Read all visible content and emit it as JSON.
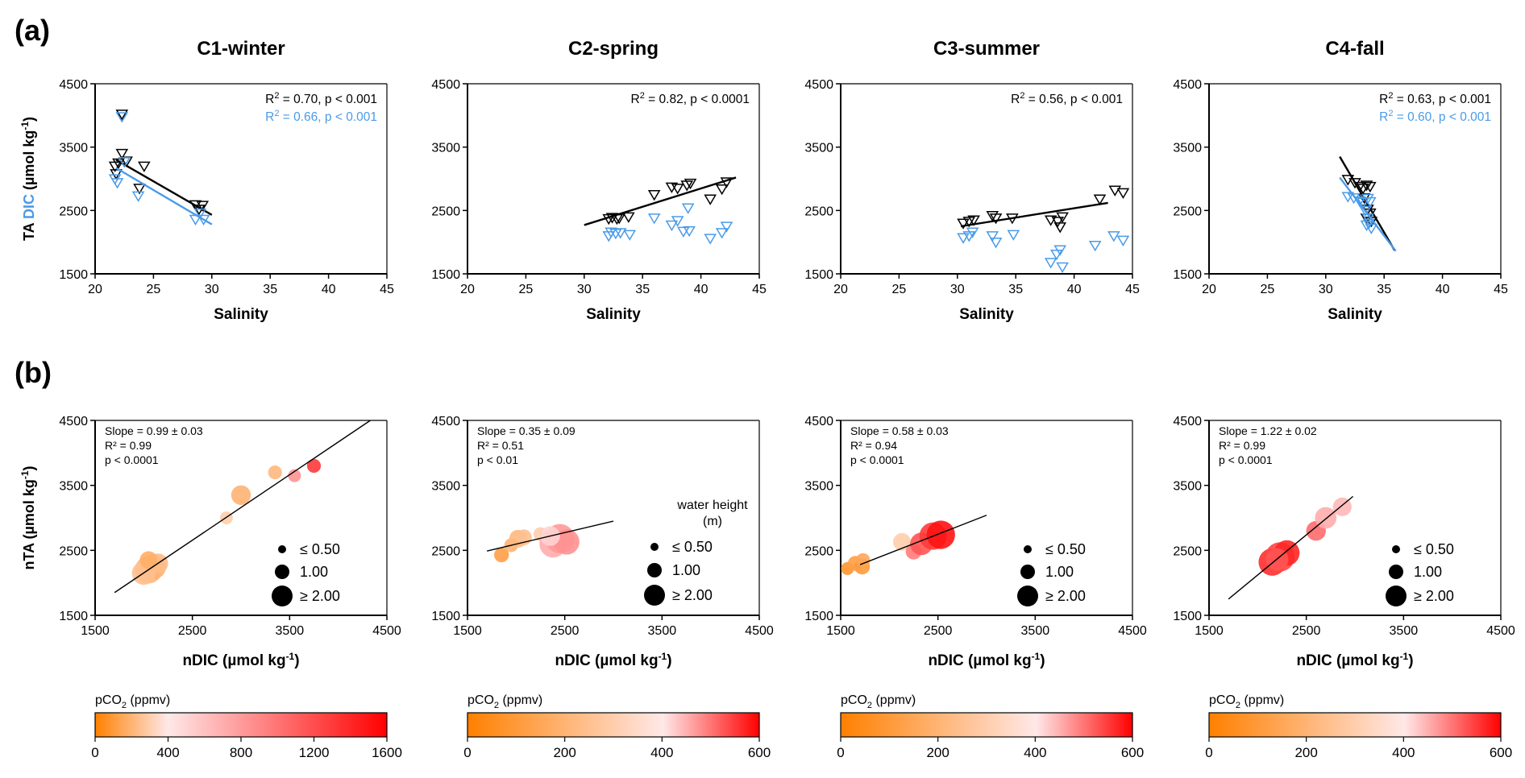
{
  "figure": {
    "panel_a_label": "(a)",
    "panel_b_label": "(b)"
  },
  "colors": {
    "ta": "#000000",
    "dic": "#4a9be8",
    "bubble_low": "#ff8000",
    "bubble_mid": "#ffe6e6",
    "bubble_high": "#ff0000"
  },
  "chart_data": [
    {
      "type": "scatter",
      "panel": "a",
      "title": "C1-winter",
      "xlabel": "Salinity",
      "ylabel_parts": [
        "TA",
        "DIC",
        "(µmol kg",
        "-1",
        ")"
      ],
      "xlim": [
        20,
        45
      ],
      "ylim": [
        1500,
        4500
      ],
      "xticks": [
        20,
        25,
        30,
        35,
        40,
        45
      ],
      "yticks": [
        1500,
        2500,
        3500,
        4500
      ],
      "series": [
        {
          "name": "TA",
          "color": "#000000",
          "points": [
            [
              22.0,
              3250
            ],
            [
              21.7,
              3200
            ],
            [
              21.8,
              3080
            ],
            [
              22.3,
              4020
            ],
            [
              22.3,
              3400
            ],
            [
              22.7,
              3280
            ],
            [
              24.2,
              3200
            ],
            [
              23.8,
              2850
            ],
            [
              28.6,
              2590
            ],
            [
              28.9,
              2520
            ],
            [
              29.2,
              2580
            ]
          ],
          "fit": [
            [
              21.8,
              3300
            ],
            [
              30.0,
              2430
            ]
          ]
        },
        {
          "name": "DIC",
          "color": "#4a9be8",
          "points": [
            [
              22.3,
              3980
            ],
            [
              21.7,
              3000
            ],
            [
              21.9,
              2940
            ],
            [
              22.5,
              3270
            ],
            [
              23.7,
              2730
            ],
            [
              28.6,
              2360
            ],
            [
              29.0,
              2460
            ],
            [
              29.3,
              2360
            ]
          ],
          "fit": [
            [
              21.8,
              3170
            ],
            [
              30.0,
              2280
            ]
          ]
        }
      ],
      "annotations": [
        {
          "text": "R",
          "sup": "2",
          "rest": " = 0.70, p < 0.001",
          "color": "#000000"
        },
        {
          "text": "R",
          "sup": "2",
          "rest": " = 0.66, p < 0.001",
          "color": "#4a9be8"
        }
      ]
    },
    {
      "type": "scatter",
      "panel": "a",
      "title": "C2-spring",
      "xlabel": "Salinity",
      "xlim": [
        20,
        45
      ],
      "ylim": [
        1500,
        4500
      ],
      "xticks": [
        20,
        25,
        30,
        35,
        40,
        45
      ],
      "yticks": [
        1500,
        2500,
        3500,
        4500
      ],
      "series": [
        {
          "name": "TA",
          "color": "#000000",
          "points": [
            [
              32.1,
              2370
            ],
            [
              32.4,
              2390
            ],
            [
              32.8,
              2370
            ],
            [
              33.0,
              2380
            ],
            [
              33.8,
              2400
            ],
            [
              36.0,
              2750
            ],
            [
              37.5,
              2870
            ],
            [
              38.0,
              2850
            ],
            [
              38.8,
              2900
            ],
            [
              39.1,
              2930
            ],
            [
              40.8,
              2680
            ],
            [
              41.8,
              2840
            ],
            [
              42.2,
              2950
            ]
          ],
          "fit": [
            [
              30.0,
              2270
            ],
            [
              43.0,
              3020
            ]
          ]
        },
        {
          "name": "DIC",
          "color": "#4a9be8",
          "points": [
            [
              32.1,
              2100
            ],
            [
              32.3,
              2160
            ],
            [
              32.7,
              2140
            ],
            [
              33.1,
              2150
            ],
            [
              33.9,
              2120
            ],
            [
              36.0,
              2380
            ],
            [
              37.5,
              2270
            ],
            [
              38.0,
              2340
            ],
            [
              38.5,
              2170
            ],
            [
              39.0,
              2180
            ],
            [
              38.9,
              2540
            ],
            [
              40.8,
              2060
            ],
            [
              41.8,
              2150
            ],
            [
              42.2,
              2250
            ]
          ]
        }
      ],
      "annotations": [
        {
          "text": "R",
          "sup": "2",
          "rest": " = 0.82, p < 0.0001",
          "color": "#000000"
        }
      ]
    },
    {
      "type": "scatter",
      "panel": "a",
      "title": "C3-summer",
      "xlabel": "Salinity",
      "xlim": [
        20,
        45
      ],
      "ylim": [
        1500,
        4500
      ],
      "xticks": [
        20,
        25,
        30,
        35,
        40,
        45
      ],
      "yticks": [
        1500,
        2500,
        3500,
        4500
      ],
      "series": [
        {
          "name": "TA",
          "color": "#000000",
          "points": [
            [
              30.5,
              2300
            ],
            [
              31.0,
              2330
            ],
            [
              31.4,
              2350
            ],
            [
              33.0,
              2420
            ],
            [
              33.3,
              2380
            ],
            [
              34.7,
              2380
            ],
            [
              38.0,
              2350
            ],
            [
              38.6,
              2330
            ],
            [
              39.0,
              2400
            ],
            [
              38.8,
              2240
            ],
            [
              42.2,
              2680
            ],
            [
              43.5,
              2820
            ],
            [
              44.2,
              2780
            ]
          ],
          "fit": [
            [
              30.3,
              2250
            ],
            [
              42.9,
              2620
            ]
          ]
        },
        {
          "name": "DIC",
          "color": "#4a9be8",
          "points": [
            [
              30.5,
              2070
            ],
            [
              31.0,
              2100
            ],
            [
              31.3,
              2160
            ],
            [
              33.0,
              2100
            ],
            [
              33.3,
              2000
            ],
            [
              34.8,
              2120
            ],
            [
              38.0,
              1680
            ],
            [
              38.5,
              1810
            ],
            [
              38.8,
              1880
            ],
            [
              39.0,
              1610
            ],
            [
              41.8,
              1950
            ],
            [
              43.4,
              2100
            ],
            [
              44.2,
              2030
            ]
          ]
        }
      ],
      "annotations": [
        {
          "text": "R",
          "sup": "2",
          "rest": " = 0.56, p < 0.001",
          "color": "#000000"
        }
      ]
    },
    {
      "type": "scatter",
      "panel": "a",
      "title": "C4-fall",
      "xlabel": "Salinity",
      "xlim": [
        20,
        45
      ],
      "ylim": [
        1500,
        4500
      ],
      "xticks": [
        20,
        25,
        30,
        35,
        40,
        45
      ],
      "yticks": [
        1500,
        2500,
        3500,
        4500
      ],
      "series": [
        {
          "name": "TA",
          "color": "#000000",
          "points": [
            [
              31.9,
              2990
            ],
            [
              32.5,
              2940
            ],
            [
              32.9,
              2880
            ],
            [
              33.2,
              2850
            ],
            [
              33.5,
              2900
            ],
            [
              33.8,
              2880
            ],
            [
              33.3,
              2700
            ],
            [
              33.6,
              2520
            ],
            [
              33.5,
              2380
            ],
            [
              33.9,
              2330
            ],
            [
              33.8,
              2460
            ]
          ],
          "fit": [
            [
              31.2,
              3350
            ],
            [
              35.9,
              1870
            ]
          ]
        },
        {
          "name": "DIC",
          "color": "#4a9be8",
          "points": [
            [
              31.9,
              2720
            ],
            [
              32.4,
              2700
            ],
            [
              32.9,
              2650
            ],
            [
              33.2,
              2630
            ],
            [
              33.6,
              2690
            ],
            [
              33.8,
              2640
            ],
            [
              33.4,
              2500
            ],
            [
              33.6,
              2380
            ],
            [
              33.5,
              2270
            ],
            [
              33.9,
              2220
            ],
            [
              33.7,
              2300
            ]
          ],
          "fit": [
            [
              31.2,
              3020
            ],
            [
              36.0,
              1860
            ]
          ]
        }
      ],
      "annotations": [
        {
          "text": "R",
          "sup": "2",
          "rest": " = 0.63, p < 0.001",
          "color": "#000000"
        },
        {
          "text": "R",
          "sup": "2",
          "rest": " = 0.60, p < 0.001",
          "color": "#4a9be8"
        }
      ]
    },
    {
      "type": "scatter",
      "panel": "b",
      "subtitle": "C1-winter",
      "xlabel": "nDIC (µmol kg-1)",
      "ylabel": "nTA (µmol kg-1)",
      "xlim": [
        1500,
        4500
      ],
      "ylim": [
        1500,
        4500
      ],
      "xticks": [
        1500,
        2500,
        3500,
        4500
      ],
      "yticks": [
        1500,
        2500,
        3500,
        4500
      ],
      "stats": [
        "Slope = 0.99 ± 0.03",
        "R² = 0.99",
        "p < 0.0001"
      ],
      "fit": [
        [
          1700,
          1850
        ],
        [
          4330,
          4500
        ]
      ],
      "size_legend": {
        "title": "",
        "entries": [
          "≤  0.50",
          "1.00",
          "≥  2.00"
        ]
      },
      "colorbar": {
        "label": "pCO2 (ppmv)",
        "ticks": [
          0,
          400,
          800,
          1200,
          1600
        ],
        "max": 1600
      },
      "points": [
        {
          "x": 2050,
          "y": 2200,
          "h": 2.0,
          "c": 0.22
        },
        {
          "x": 2100,
          "y": 2250,
          "h": 1.8,
          "c": 0.2
        },
        {
          "x": 2000,
          "y": 2150,
          "h": 1.6,
          "c": 0.25
        },
        {
          "x": 2150,
          "y": 2300,
          "h": 1.2,
          "c": 0.24
        },
        {
          "x": 2050,
          "y": 2350,
          "h": 1.0,
          "c": 0.18
        },
        {
          "x": 2850,
          "y": 3000,
          "h": 0.5,
          "c": 0.3
        },
        {
          "x": 3000,
          "y": 3350,
          "h": 1.2,
          "c": 0.2
        },
        {
          "x": 3350,
          "y": 3700,
          "h": 0.6,
          "c": 0.22
        },
        {
          "x": 3550,
          "y": 3650,
          "h": 0.5,
          "c": 0.62
        },
        {
          "x": 3750,
          "y": 3800,
          "h": 0.6,
          "c": 0.85
        }
      ]
    },
    {
      "type": "scatter",
      "panel": "b",
      "subtitle": "C2-spring",
      "xlabel": "nDIC (µmol kg-1)",
      "xlim": [
        1500,
        4500
      ],
      "ylim": [
        1500,
        4500
      ],
      "xticks": [
        1500,
        2500,
        3500,
        4500
      ],
      "yticks": [
        1500,
        2500,
        3500,
        4500
      ],
      "stats": [
        "Slope = 0.35 ± 0.09",
        "R² = 0.51",
        "p < 0.01"
      ],
      "fit": [
        [
          1700,
          2490
        ],
        [
          3000,
          2950
        ]
      ],
      "size_legend": {
        "title": "water height (m)",
        "entries": [
          "≤  0.50",
          "1.00",
          "≥  2.00"
        ]
      },
      "colorbar": {
        "label": "pCO2 (ppmv)",
        "ticks": [
          0,
          200,
          400,
          600
        ],
        "max": 600
      },
      "points": [
        {
          "x": 1850,
          "y": 2430,
          "h": 0.7,
          "c": 0.12
        },
        {
          "x": 1950,
          "y": 2580,
          "h": 0.6,
          "c": 0.2
        },
        {
          "x": 2020,
          "y": 2680,
          "h": 1.0,
          "c": 0.22
        },
        {
          "x": 2080,
          "y": 2700,
          "h": 0.8,
          "c": 0.25
        },
        {
          "x": 2250,
          "y": 2750,
          "h": 0.6,
          "c": 0.3
        },
        {
          "x": 2380,
          "y": 2600,
          "h": 2.0,
          "c": 0.55
        },
        {
          "x": 2450,
          "y": 2680,
          "h": 2.2,
          "c": 0.6
        },
        {
          "x": 2520,
          "y": 2630,
          "h": 1.8,
          "c": 0.62
        },
        {
          "x": 2350,
          "y": 2720,
          "h": 1.2,
          "c": 0.45
        }
      ]
    },
    {
      "type": "scatter",
      "panel": "b",
      "subtitle": "C3-summer",
      "xlabel": "nDIC (µmol kg-1)",
      "xlim": [
        1500,
        4500
      ],
      "ylim": [
        1500,
        4500
      ],
      "xticks": [
        1500,
        2500,
        3500,
        4500
      ],
      "yticks": [
        1500,
        2500,
        3500,
        4500
      ],
      "stats": [
        "Slope = 0.58 ± 0.03",
        "R² = 0.94",
        "p < 0.0001"
      ],
      "fit": [
        [
          1700,
          2280
        ],
        [
          3000,
          3040
        ]
      ],
      "size_legend": {
        "title": "",
        "entries": [
          "≤  0.50",
          "1.00",
          "≥  2.00"
        ]
      },
      "colorbar": {
        "label": "pCO2 (ppmv)",
        "ticks": [
          0,
          200,
          400,
          600
        ],
        "max": 600
      },
      "points": [
        {
          "x": 1570,
          "y": 2220,
          "h": 0.5,
          "c": 0.08
        },
        {
          "x": 1650,
          "y": 2300,
          "h": 0.7,
          "c": 0.12
        },
        {
          "x": 1720,
          "y": 2250,
          "h": 0.8,
          "c": 0.1
        },
        {
          "x": 1730,
          "y": 2350,
          "h": 0.6,
          "c": 0.15
        },
        {
          "x": 2130,
          "y": 2630,
          "h": 1.0,
          "c": 0.3
        },
        {
          "x": 2250,
          "y": 2480,
          "h": 0.8,
          "c": 0.68
        },
        {
          "x": 2330,
          "y": 2600,
          "h": 1.5,
          "c": 0.78
        },
        {
          "x": 2450,
          "y": 2720,
          "h": 2.0,
          "c": 0.85
        },
        {
          "x": 2530,
          "y": 2740,
          "h": 2.1,
          "c": 0.95
        }
      ]
    },
    {
      "type": "scatter",
      "panel": "b",
      "subtitle": "C4-fall",
      "xlabel": "nDIC (µmol kg-1)",
      "xlim": [
        1500,
        4500
      ],
      "ylim": [
        1500,
        4500
      ],
      "xticks": [
        1500,
        2500,
        3500,
        4500
      ],
      "yticks": [
        1500,
        2500,
        3500,
        4500
      ],
      "stats": [
        "Slope = 1.22 ± 0.02",
        "R² = 0.99",
        "p < 0.0001"
      ],
      "fit": [
        [
          1700,
          1750
        ],
        [
          2980,
          3330
        ]
      ],
      "size_legend": {
        "title": "",
        "entries": [
          "≤  0.50",
          "1.00",
          "≥  2.00"
        ]
      },
      "colorbar": {
        "label": "pCO2 (ppmv)",
        "ticks": [
          0,
          200,
          400,
          600
        ],
        "max": 600
      },
      "points": [
        {
          "x": 2150,
          "y": 2320,
          "h": 2.0,
          "c": 0.88
        },
        {
          "x": 2230,
          "y": 2400,
          "h": 2.2,
          "c": 0.82
        },
        {
          "x": 2300,
          "y": 2460,
          "h": 1.8,
          "c": 0.9
        },
        {
          "x": 2200,
          "y": 2360,
          "h": 1.5,
          "c": 0.78
        },
        {
          "x": 2600,
          "y": 2800,
          "h": 1.2,
          "c": 0.72
        },
        {
          "x": 2700,
          "y": 3000,
          "h": 1.4,
          "c": 0.55
        },
        {
          "x": 2870,
          "y": 3170,
          "h": 1.1,
          "c": 0.52
        }
      ]
    }
  ]
}
